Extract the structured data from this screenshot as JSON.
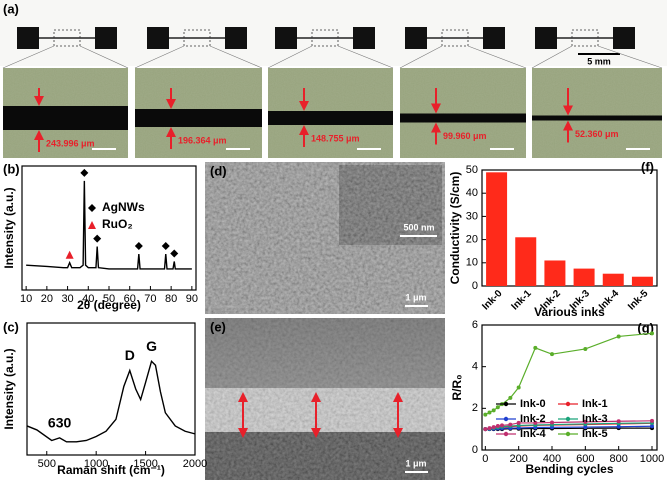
{
  "figure": {
    "panel_a": {
      "label": "(a)",
      "scale_bar": "5 mm",
      "widths": [
        "243.996 μm",
        "196.364 μm",
        "148.755 μm",
        "99.960 μm",
        "52.360 μm"
      ]
    },
    "panel_d": {
      "label": "(d)",
      "inset_scale": "500 nm",
      "scale": "1 μm"
    },
    "panel_e": {
      "label": "(e)",
      "scale": "1 μm"
    }
  },
  "chart_data": [
    {
      "type": "line",
      "panel_label": "(b)",
      "xlabel": "2θ (degree)",
      "ylabel": "Intensity (a.u.)",
      "x": [
        10,
        20,
        28,
        30,
        31,
        32,
        36,
        37.5,
        38.1,
        38.7,
        40,
        43.7,
        44.3,
        44.9,
        50,
        60,
        63.8,
        64.4,
        65,
        70,
        76.8,
        77.4,
        78,
        80.9,
        81.5,
        82,
        90
      ],
      "values": [
        20,
        19,
        18,
        18,
        22,
        18,
        18,
        20,
        88,
        20,
        18,
        18,
        35,
        18,
        17,
        17,
        17,
        29,
        17,
        17,
        17,
        29,
        17,
        17,
        23,
        17,
        17
      ],
      "color": "#000000",
      "xlim": [
        8,
        92
      ],
      "xticks": [
        10,
        20,
        30,
        40,
        50,
        60,
        70,
        80,
        90
      ],
      "ylim": [
        0,
        100
      ],
      "markers": [
        {
          "name": "AgNWs",
          "color": "#000000",
          "peaks": [
            38.1,
            44.3,
            64.4,
            77.4,
            81.5
          ]
        },
        {
          "name": "RuO₂",
          "color": "#e8202a",
          "peaks": [
            31
          ]
        }
      ]
    },
    {
      "type": "line",
      "panel_label": "(c)",
      "xlabel": "Raman shift (cm⁻¹)",
      "ylabel": "Intensity (a.u.)",
      "x": [
        300,
        400,
        550,
        630,
        700,
        800,
        900,
        1000,
        1100,
        1200,
        1280,
        1340,
        1400,
        1450,
        1500,
        1560,
        1600,
        1650,
        1700,
        1800,
        1900,
        2000
      ],
      "values": [
        22,
        19,
        11,
        13,
        10,
        10,
        11,
        14,
        18,
        27,
        52,
        64,
        50,
        42,
        55,
        71,
        68,
        48,
        32,
        22,
        18,
        16
      ],
      "color": "#000000",
      "xlim": [
        300,
        2000
      ],
      "xticks": [
        500,
        1000,
        1500,
        2000
      ],
      "ylim": [
        0,
        100
      ],
      "annotations": [
        {
          "text": "D",
          "x": 1340
        },
        {
          "text": "G",
          "x": 1560
        },
        {
          "text": "630",
          "x": 630
        }
      ]
    },
    {
      "type": "bar",
      "panel_label": "(f)",
      "xlabel": "Various inks",
      "ylabel": "Conductivity (S/cm)",
      "categories": [
        "Ink-0",
        "Ink-1",
        "Ink-2",
        "Ink-3",
        "Ink-4",
        "Ink-5"
      ],
      "values": [
        49,
        21,
        11,
        7.5,
        5.3,
        4
      ],
      "color": "#ff2a1a",
      "ylim": [
        0,
        50
      ],
      "yticks": [
        0,
        10,
        20,
        30,
        40,
        50
      ]
    },
    {
      "type": "line",
      "panel_label": "(g)",
      "xlabel": "Bending cycles",
      "ylabel": "R/R₀",
      "x": [
        0,
        25,
        50,
        75,
        100,
        150,
        200,
        300,
        400,
        600,
        800,
        1000
      ],
      "series": [
        {
          "name": "Ink-0",
          "color": "#000000",
          "values": [
            1,
            1,
            1,
            1,
            1,
            1.02,
            1.02,
            1.03,
            1.03,
            1.04,
            1.05,
            1.05
          ]
        },
        {
          "name": "Ink-1",
          "color": "#e8202a",
          "values": [
            1,
            1.02,
            1.05,
            1.08,
            1.1,
            1.12,
            1.15,
            1.18,
            1.2,
            1.22,
            1.25,
            1.28
          ]
        },
        {
          "name": "Ink-2",
          "color": "#2040d0",
          "values": [
            1,
            1.01,
            1.02,
            1.03,
            1.04,
            1.05,
            1.06,
            1.08,
            1.09,
            1.1,
            1.12,
            1.14
          ]
        },
        {
          "name": "Ink-3",
          "color": "#1aa37a",
          "values": [
            1,
            1.03,
            1.06,
            1.09,
            1.12,
            1.15,
            1.18,
            1.2,
            1.22,
            1.25,
            1.28,
            1.3
          ]
        },
        {
          "name": "Ink-4",
          "color": "#c0306f",
          "values": [
            1,
            1.05,
            1.1,
            1.15,
            1.18,
            1.22,
            1.3,
            1.3,
            1.32,
            1.35,
            1.38,
            1.4
          ]
        },
        {
          "name": "Ink-5",
          "color": "#5aae2a",
          "values": [
            1.7,
            1.8,
            1.9,
            2.05,
            2.2,
            2.5,
            3.0,
            4.9,
            4.6,
            4.85,
            5.45,
            5.6
          ]
        }
      ],
      "xlim": [
        -20,
        1030
      ],
      "xticks": [
        0,
        200,
        400,
        600,
        800,
        1000
      ],
      "ylim": [
        0,
        6
      ],
      "yticks": [
        0,
        2,
        4,
        6
      ]
    }
  ]
}
